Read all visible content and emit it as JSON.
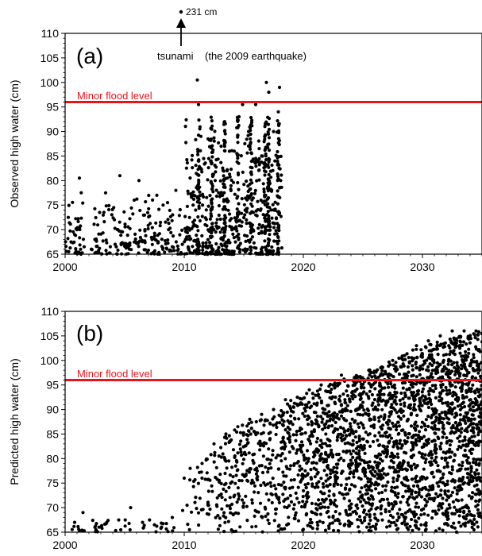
{
  "chart_data": [
    {
      "type": "scatter",
      "panel_label": "(a)",
      "ylabel": "Observed high water (cm)",
      "xlabel": "",
      "xlim": [
        2000,
        2035
      ],
      "ylim": [
        65,
        110
      ],
      "x_ticks": [
        "2000",
        "2010",
        "2020",
        "2030"
      ],
      "y_ticks": [
        "65",
        "70",
        "75",
        "80",
        "85",
        "90",
        "95",
        "100",
        "105",
        "110"
      ],
      "grid": false,
      "reference_line": {
        "label": "Minor flood level",
        "y": 96,
        "color": "#e8141b"
      },
      "outlier": {
        "x": 2009.9,
        "label": "231 cm",
        "y_value": 231
      },
      "annotation": {
        "label": "tsunami",
        "note": "(the 2009 earthquake)",
        "x": 2009.9
      },
      "points": [
        [
          2000.3,
          65.5
        ],
        [
          2000.5,
          67.5
        ],
        [
          2000.8,
          69.0
        ],
        [
          2001.0,
          70.0
        ],
        [
          2001.2,
          80.5
        ],
        [
          2001.3,
          66.0
        ],
        [
          2001.6,
          66.5
        ],
        [
          2002.2,
          66.0
        ],
        [
          2002.5,
          68.0
        ],
        [
          2002.9,
          73.5
        ],
        [
          2003.4,
          77.5
        ],
        [
          2004.2,
          67.0
        ],
        [
          2004.4,
          70.0
        ],
        [
          2004.6,
          81.0
        ],
        [
          2005.3,
          67.0
        ],
        [
          2005.8,
          76.0
        ],
        [
          2006.2,
          80.0
        ],
        [
          2006.7,
          70.0
        ],
        [
          2007.3,
          68.0
        ],
        [
          2007.7,
          77.0
        ],
        [
          2008.2,
          66.0
        ],
        [
          2008.6,
          75.5
        ],
        [
          2009.0,
          66.5
        ],
        [
          2009.3,
          78.0
        ],
        [
          2009.5,
          66.0
        ],
        [
          2010.2,
          70.0
        ],
        [
          2010.6,
          77.0
        ],
        [
          2011.1,
          100.5
        ],
        [
          2011.2,
          95.5
        ],
        [
          2011.4,
          89.0
        ],
        [
          2012.0,
          88.5
        ],
        [
          2012.6,
          80.0
        ],
        [
          2013.1,
          87.0
        ],
        [
          2013.6,
          82.0
        ],
        [
          2014.2,
          86.0
        ],
        [
          2014.6,
          93.0
        ],
        [
          2014.9,
          95.5
        ],
        [
          2015.4,
          90.0
        ],
        [
          2016.0,
          95.5
        ],
        [
          2016.5,
          85.0
        ],
        [
          2016.9,
          100.0
        ],
        [
          2017.1,
          98.0
        ],
        [
          2017.5,
          90.0
        ],
        [
          2017.9,
          94.0
        ],
        [
          2018.0,
          99.0
        ],
        [
          2018.1,
          80.0
        ]
      ]
    },
    {
      "type": "scatter",
      "panel_label": "(b)",
      "ylabel": "Predicted high water (cm)",
      "xlabel": "",
      "xlim": [
        2000,
        2035
      ],
      "ylim": [
        65,
        110
      ],
      "x_ticks": [
        "2000",
        "2010",
        "2020",
        "2030"
      ],
      "y_ticks": [
        "65",
        "70",
        "75",
        "80",
        "85",
        "90",
        "95",
        "100",
        "105",
        "110"
      ],
      "grid": false,
      "reference_line": {
        "label": "Minor flood level",
        "y": 96,
        "color": "#e8141b"
      },
      "points": [
        [
          2000.8,
          67.0
        ],
        [
          2001.5,
          69.0
        ],
        [
          2002.5,
          66.0
        ],
        [
          2003.5,
          67.0
        ],
        [
          2004.5,
          67.5
        ],
        [
          2005.5,
          70.0
        ],
        [
          2006.5,
          67.0
        ],
        [
          2007.5,
          66.5
        ],
        [
          2009.0,
          68.0
        ],
        [
          2010.0,
          76.0
        ],
        [
          2010.5,
          78.0
        ],
        [
          2011.5,
          79.0
        ],
        [
          2012.5,
          83.0
        ],
        [
          2013.5,
          85.0
        ],
        [
          2014.5,
          86.5
        ],
        [
          2015.5,
          88.0
        ],
        [
          2016.5,
          89.0
        ],
        [
          2017.5,
          90.0
        ],
        [
          2018.5,
          92.0
        ],
        [
          2019.5,
          92.5
        ],
        [
          2020.5,
          94.0
        ],
        [
          2021.5,
          95.0
        ],
        [
          2022.5,
          95.0
        ],
        [
          2023.2,
          97.0
        ],
        [
          2024.5,
          96.5
        ],
        [
          2025.5,
          98.0
        ],
        [
          2026.5,
          98.5
        ],
        [
          2027.5,
          100.0
        ],
        [
          2028.5,
          101.0
        ],
        [
          2029.5,
          103.0
        ],
        [
          2030.5,
          104.0
        ],
        [
          2031.5,
          105.0
        ],
        [
          2032.5,
          106.0
        ],
        [
          2033.5,
          106.0
        ],
        [
          2034.5,
          106.0
        ]
      ],
      "envelope_upper": [
        [
          2009.5,
          66
        ],
        [
          2010.0,
          74
        ],
        [
          2011.0,
          78
        ],
        [
          2012.0,
          81
        ],
        [
          2013.0,
          84
        ],
        [
          2014.0,
          85.5
        ],
        [
          2015.0,
          87
        ],
        [
          2016.0,
          88
        ],
        [
          2017.0,
          89
        ],
        [
          2018.0,
          90.5
        ],
        [
          2019.0,
          92
        ],
        [
          2020.0,
          93
        ],
        [
          2021.0,
          94
        ],
        [
          2022.0,
          95
        ],
        [
          2023.0,
          96
        ],
        [
          2024.0,
          96.5
        ],
        [
          2025.0,
          97.5
        ],
        [
          2026.0,
          98.5
        ],
        [
          2027.0,
          99.5
        ],
        [
          2028.0,
          100.5
        ],
        [
          2029.0,
          102
        ],
        [
          2030.0,
          103
        ],
        [
          2031.0,
          104
        ],
        [
          2032.0,
          104.5
        ],
        [
          2033.0,
          105
        ],
        [
          2034.0,
          105.5
        ],
        [
          2035.0,
          106
        ]
      ]
    }
  ]
}
